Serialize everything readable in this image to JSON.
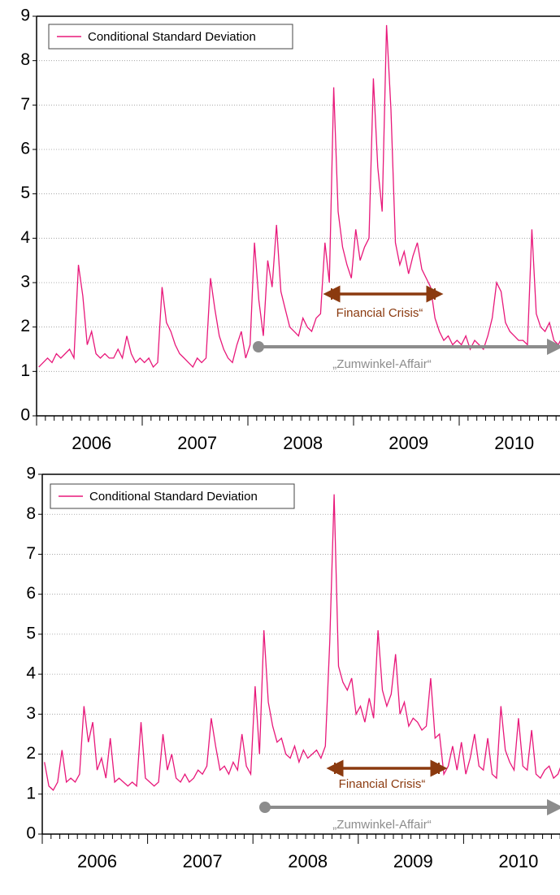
{
  "chart_data": [
    {
      "type": "line",
      "legend": "upper left",
      "grid": true,
      "ylim": [
        0,
        9
      ],
      "yticks": [
        0,
        1,
        2,
        3,
        4,
        5,
        6,
        7,
        8,
        9
      ],
      "categories": [
        null,
        null,
        null,
        null,
        null,
        null,
        null,
        null,
        null,
        null,
        null,
        null,
        "2006",
        null,
        null,
        null,
        null,
        null,
        null,
        null,
        null,
        null,
        null,
        null,
        null,
        null,
        null,
        null,
        null,
        null,
        null,
        null,
        null,
        null,
        null,
        null,
        "2007",
        null,
        null,
        null,
        null,
        null,
        null,
        null,
        null,
        null,
        null,
        null,
        null,
        null,
        null,
        null,
        null,
        null,
        null,
        null,
        null,
        null,
        null,
        null,
        "2008",
        null,
        null,
        null,
        null,
        null,
        null,
        null,
        null,
        null,
        null,
        null,
        null,
        null,
        null,
        null,
        null,
        null,
        null,
        null,
        null,
        null,
        null,
        null,
        "2009",
        null,
        null,
        null,
        null,
        null,
        null,
        null,
        null,
        null,
        null,
        null,
        null,
        null,
        null,
        null,
        null,
        null,
        null,
        null,
        null,
        null,
        null,
        null,
        "2010",
        null,
        null,
        null,
        null,
        null,
        null,
        null,
        null,
        null,
        null,
        null
      ],
      "series": [
        {
          "name": "Conditional Standard Deviation",
          "color": "#e8187a",
          "values": [
            1.1,
            1.2,
            1.3,
            1.2,
            1.4,
            1.3,
            1.4,
            1.5,
            1.3,
            3.4,
            2.7,
            1.6,
            1.9,
            1.4,
            1.3,
            1.4,
            1.3,
            1.3,
            1.5,
            1.3,
            1.8,
            1.4,
            1.2,
            1.3,
            1.2,
            1.3,
            1.1,
            1.2,
            2.9,
            2.1,
            1.9,
            1.6,
            1.4,
            1.3,
            1.2,
            1.1,
            1.3,
            1.2,
            1.3,
            3.1,
            2.4,
            1.8,
            1.5,
            1.3,
            1.2,
            1.6,
            1.9,
            1.3,
            1.6,
            3.9,
            2.6,
            1.8,
            3.5,
            2.9,
            4.3,
            2.8,
            2.4,
            2.0,
            1.9,
            1.8,
            2.2,
            2.0,
            1.9,
            2.2,
            2.3,
            3.9,
            3.0,
            7.4,
            4.6,
            3.8,
            3.4,
            3.1,
            4.2,
            3.5,
            3.8,
            4.0,
            7.6,
            5.6,
            4.6,
            8.8,
            6.9,
            3.9,
            3.4,
            3.7,
            3.2,
            3.6,
            3.9,
            3.3,
            3.1,
            2.9,
            2.2,
            1.9,
            1.7,
            1.8,
            1.6,
            1.7,
            1.6,
            1.8,
            1.5,
            1.7,
            1.6,
            1.5,
            1.8,
            2.2,
            3.0,
            2.8,
            2.1,
            1.9,
            1.8,
            1.7,
            1.7,
            1.6,
            4.2,
            2.3,
            2.0,
            1.9,
            2.1,
            1.7,
            1.6,
            1.8
          ]
        }
      ],
      "annotations": [
        "Financial Crisis“",
        "„Zumwinkel-Affair“"
      ]
    },
    {
      "type": "line",
      "legend": "upper left",
      "grid": true,
      "ylim": [
        0,
        9
      ],
      "yticks": [
        0,
        1,
        2,
        3,
        4,
        5,
        6,
        7,
        8,
        9
      ],
      "categories": [
        null,
        null,
        null,
        null,
        null,
        null,
        null,
        null,
        null,
        null,
        null,
        null,
        "2006",
        null,
        null,
        null,
        null,
        null,
        null,
        null,
        null,
        null,
        null,
        null,
        null,
        null,
        null,
        null,
        null,
        null,
        null,
        null,
        null,
        null,
        null,
        null,
        "2007",
        null,
        null,
        null,
        null,
        null,
        null,
        null,
        null,
        null,
        null,
        null,
        null,
        null,
        null,
        null,
        null,
        null,
        null,
        null,
        null,
        null,
        null,
        null,
        "2008",
        null,
        null,
        null,
        null,
        null,
        null,
        null,
        null,
        null,
        null,
        null,
        null,
        null,
        null,
        null,
        null,
        null,
        null,
        null,
        null,
        null,
        null,
        null,
        "2009",
        null,
        null,
        null,
        null,
        null,
        null,
        null,
        null,
        null,
        null,
        null,
        null,
        null,
        null,
        null,
        null,
        null,
        null,
        null,
        null,
        null,
        null,
        null,
        "2010",
        null,
        null,
        null,
        null,
        null,
        null,
        null,
        null,
        null,
        null,
        null
      ],
      "series": [
        {
          "name": "Conditional Standard Deviation",
          "color": "#e8187a",
          "values": [
            1.8,
            1.2,
            1.1,
            1.3,
            2.1,
            1.3,
            1.4,
            1.3,
            1.5,
            3.2,
            2.3,
            2.8,
            1.6,
            1.9,
            1.4,
            2.4,
            1.3,
            1.4,
            1.3,
            1.2,
            1.3,
            1.2,
            2.8,
            1.4,
            1.3,
            1.2,
            1.3,
            2.5,
            1.6,
            2.0,
            1.4,
            1.3,
            1.5,
            1.3,
            1.4,
            1.6,
            1.5,
            1.7,
            2.9,
            2.2,
            1.6,
            1.7,
            1.5,
            1.8,
            1.6,
            2.5,
            1.7,
            1.5,
            3.7,
            2.0,
            5.1,
            3.3,
            2.7,
            2.3,
            2.4,
            2.0,
            1.9,
            2.2,
            1.8,
            2.1,
            1.9,
            2.0,
            2.1,
            1.9,
            2.2,
            4.8,
            8.5,
            4.2,
            3.8,
            3.6,
            3.9,
            3.0,
            3.2,
            2.8,
            3.4,
            2.9,
            5.1,
            3.6,
            3.2,
            3.5,
            4.5,
            3.0,
            3.3,
            2.7,
            2.9,
            2.8,
            2.6,
            2.7,
            3.9,
            2.4,
            2.5,
            1.5,
            1.7,
            2.2,
            1.6,
            2.3,
            1.5,
            1.9,
            2.5,
            1.7,
            1.6,
            2.4,
            1.5,
            1.4,
            3.2,
            2.1,
            1.8,
            1.6,
            2.9,
            1.7,
            1.6,
            2.6,
            1.5,
            1.4,
            1.6,
            1.7,
            1.4,
            1.5,
            1.8,
            1.9
          ]
        }
      ],
      "annotations": [
        "Financial Crisis“",
        "„Zumwinkel-Affair“"
      ]
    }
  ]
}
